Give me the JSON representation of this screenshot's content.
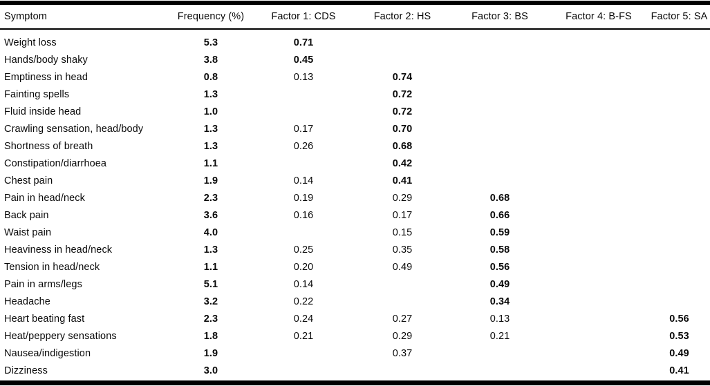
{
  "page": {
    "background_color": "#ffffff",
    "text_color": "#0a0a0a",
    "rule_color": "#000000"
  },
  "table": {
    "columns": [
      {
        "key": "symptom",
        "label": "Symptom",
        "align": "left"
      },
      {
        "key": "frequency",
        "label": "Frequency (%)",
        "align": "center"
      },
      {
        "key": "factor1-cds",
        "label": "Factor 1: CDS",
        "align": "center"
      },
      {
        "key": "factor2-hs",
        "label": "Factor 2: HS",
        "align": "center"
      },
      {
        "key": "factor3-bs",
        "label": "Factor 3: BS",
        "align": "center"
      },
      {
        "key": "factor4-bfs",
        "label": "Factor 4: B-FS",
        "align": "center"
      },
      {
        "key": "factor5-sa",
        "label": "Factor 5: SA",
        "align": "center"
      }
    ],
    "rows": [
      [
        "Weight loss",
        "5.3",
        "0.71",
        "",
        "",
        "",
        ""
      ],
      [
        "Hands/body shaky",
        "3.8",
        "0.45",
        "",
        "",
        "",
        ""
      ],
      [
        "Emptiness in head",
        "0.8",
        "0.13",
        "0.74",
        "",
        "",
        ""
      ],
      [
        "Fainting spells",
        "1.3",
        "",
        "0.72",
        "",
        "",
        ""
      ],
      [
        "Fluid inside head",
        "1.0",
        "",
        "0.72",
        "",
        "",
        ""
      ],
      [
        "Crawling sensation, head/body",
        "1.3",
        "0.17",
        "0.70",
        "",
        "",
        ""
      ],
      [
        "Shortness of breath",
        "1.3",
        "0.26",
        "0.68",
        "",
        "",
        ""
      ],
      [
        "Constipation/diarrhoea",
        "1.1",
        "",
        "0.42",
        "",
        "",
        ""
      ],
      [
        "Chest pain",
        "1.9",
        "0.14",
        "0.41",
        "",
        "",
        ""
      ],
      [
        "Pain in head/neck",
        "2.3",
        "0.19",
        "0.29",
        "0.68",
        "",
        ""
      ],
      [
        "Back pain",
        "3.6",
        "0.16",
        "0.17",
        "0.66",
        "",
        ""
      ],
      [
        "Waist pain",
        "4.0",
        "",
        "0.15",
        "0.59",
        "",
        ""
      ],
      [
        "Heaviness in head/neck",
        "1.3",
        "0.25",
        "0.35",
        "0.58",
        "",
        ""
      ],
      [
        "Tension in head/neck",
        "1.1",
        "0.20",
        "0.49",
        "0.56",
        "",
        ""
      ],
      [
        "Pain in arms/legs",
        "5.1",
        "0.14",
        "",
        "0.49",
        "",
        ""
      ],
      [
        "Headache",
        "3.2",
        "0.22",
        "",
        "0.34",
        "",
        ""
      ],
      [
        "Heart beating fast",
        "2.3",
        "0.24",
        "0.27",
        "0.13",
        "",
        "0.56"
      ],
      [
        "Heat/peppery sensations",
        "1.8",
        "0.21",
        "0.29",
        "0.21",
        "",
        "0.53"
      ],
      [
        "Nausea/indigestion",
        "1.9",
        "",
        "0.37",
        "",
        "",
        "0.49"
      ],
      [
        "Dizziness",
        "3.0",
        "",
        "",
        "",
        "",
        "0.41"
      ]
    ]
  }
}
